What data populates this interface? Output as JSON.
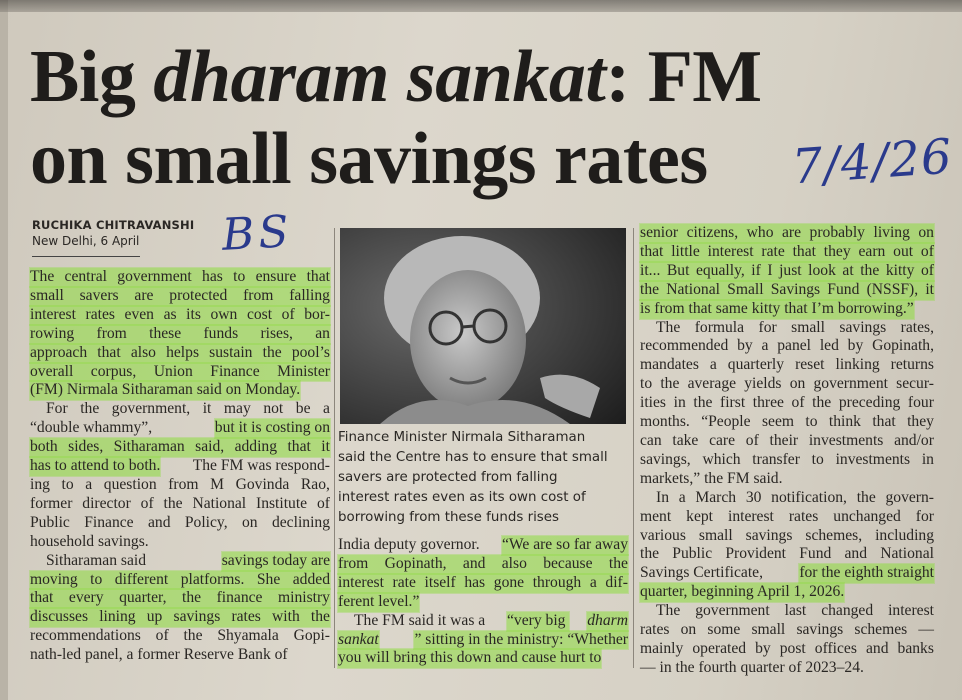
{
  "headline": {
    "line1_pre": "Big ",
    "line1_italic": "dharam sankat",
    "line1_post": ": FM",
    "line2": "on small savings rates"
  },
  "byline": {
    "author": "RUCHIKA CHITRAVANSHI",
    "dateline": "New Delhi, 6 April"
  },
  "annotations": {
    "initials": "BS",
    "date": "7/4/26"
  },
  "photo": {
    "caption": [
      "Finance Minister Nirmala Sitharaman",
      "said the Centre has to ensure that small",
      "savers are protected from falling",
      "interest rates even as its own cost of",
      "borrowing from these funds rises"
    ]
  },
  "colors": {
    "highlight": "#8cdc3c",
    "ink": "#2a3a8c",
    "paper": "#d8d3c8"
  },
  "body": {
    "col1": {
      "paragraphs": [
        {
          "lines": [
            [
              {
                "text": "The central government has to ensure that",
                "highlight": true
              }
            ],
            [
              {
                "text": "small savers are protected from falling",
                "highlight": true
              }
            ],
            [
              {
                "text": "interest rates even as its own cost of bor-",
                "highlight": true
              }
            ],
            [
              {
                "text": "rowing from these funds rises, an",
                "highlight": true
              }
            ],
            [
              {
                "text": "approach that also helps sustain the pool’s",
                "highlight": true
              }
            ],
            [
              {
                "text": "overall corpus, Union Finance Minister",
                "highlight": true
              }
            ],
            [
              {
                "text": "(FM) Nirmala Sitharaman said on Monday.",
                "highlight": true
              }
            ]
          ]
        },
        {
          "lines": [
            [
              {
                "text": "For the government, it may not be a"
              }
            ],
            [
              {
                "text": "“double whammy”, "
              },
              {
                "text": "but it is costing on",
                "highlight": true
              }
            ],
            [
              {
                "text": "both sides, Sitharaman said, adding that it",
                "highlight": true
              }
            ],
            [
              {
                "text": "has to attend to both.",
                "highlight": true
              },
              {
                "text": " The FM was respond-"
              }
            ],
            [
              {
                "text": "ing to a question from M Govinda Rao,"
              }
            ],
            [
              {
                "text": "former director of the National Institute of"
              }
            ],
            [
              {
                "text": "Public Finance and Policy, on declining"
              }
            ],
            [
              {
                "text": "household savings."
              }
            ]
          ]
        },
        {
          "lines": [
            [
              {
                "text": "Sitharaman said "
              },
              {
                "text": "savings today are",
                "highlight": true
              }
            ],
            [
              {
                "text": "moving to different platforms. She added",
                "highlight": true
              }
            ],
            [
              {
                "text": "that every quarter, the finance ministry",
                "highlight": true
              }
            ],
            [
              {
                "text": "discusses lining up savings rates with the",
                "highlight": true
              }
            ],
            [
              {
                "text": "recommendations of the Shyamala Gopi-"
              }
            ],
            [
              {
                "text": "nath-led panel, a former Reserve Bank of"
              }
            ]
          ]
        }
      ]
    },
    "col2": {
      "paragraphs": [
        {
          "lines": [
            [
              {
                "text": "India deputy governor. "
              },
              {
                "text": "“We are so far away",
                "highlight": true
              }
            ],
            [
              {
                "text": "from Gopinath, and also because the",
                "highlight": true
              }
            ],
            [
              {
                "text": "interest rate itself has gone through a dif-",
                "highlight": true
              }
            ],
            [
              {
                "text": "ferent level.”",
                "highlight": true
              }
            ]
          ]
        },
        {
          "lines": [
            [
              {
                "text": "The FM said it was a "
              },
              {
                "text": "“very big ",
                "highlight": true
              },
              {
                "text": "dharm",
                "highlight": true,
                "italic": true
              }
            ],
            [
              {
                "text": "sankat",
                "highlight": true,
                "italic": true
              },
              {
                "text": "” sitting in the ministry: “Whether",
                "highlight": true
              }
            ],
            [
              {
                "text": "you will bring this down and cause hurt to",
                "highlight": true
              }
            ]
          ]
        }
      ]
    },
    "col3": {
      "paragraphs": [
        {
          "lines": [
            [
              {
                "text": "senior citizens, who are probably living on",
                "highlight": true
              }
            ],
            [
              {
                "text": "that little interest rate that they earn out of",
                "highlight": true
              }
            ],
            [
              {
                "text": "it... But equally, if I just look at the kitty of",
                "highlight": true
              }
            ],
            [
              {
                "text": "the National Small Savings Fund (NSSF), it",
                "highlight": true
              }
            ],
            [
              {
                "text": "is from that same kitty that I’m borrowing.”",
                "highlight": true
              }
            ]
          ]
        },
        {
          "lines": [
            [
              {
                "text": "The formula for small savings rates,"
              }
            ],
            [
              {
                "text": "recommended by a panel led by Gopinath,"
              }
            ],
            [
              {
                "text": "mandates a quarterly reset linking returns"
              }
            ],
            [
              {
                "text": "to the average yields on government secur-"
              }
            ],
            [
              {
                "text": "ities in the first three of the preceding four"
              }
            ],
            [
              {
                "text": "months. “People seem to think that they"
              }
            ],
            [
              {
                "text": "can take care of their investments and/or"
              }
            ],
            [
              {
                "text": "savings, which transfer to investments in"
              }
            ],
            [
              {
                "text": "markets,” the FM said."
              }
            ]
          ]
        },
        {
          "lines": [
            [
              {
                "text": "In a March 30 notification, the govern-"
              }
            ],
            [
              {
                "text": "ment kept interest rates unchanged for"
              }
            ],
            [
              {
                "text": "various small savings schemes, including"
              }
            ],
            [
              {
                "text": "the Public Provident Fund and National"
              }
            ],
            [
              {
                "text": "Savings Certificate, "
              },
              {
                "text": "for the eighth straight",
                "highlight": true
              }
            ],
            [
              {
                "text": "quarter, beginning April 1, 2026.",
                "highlight": true
              }
            ]
          ]
        },
        {
          "lines": [
            [
              {
                "text": "The government last changed interest"
              }
            ],
            [
              {
                "text": "rates on some small savings schemes —"
              }
            ],
            [
              {
                "text": "mainly operated by post offices and banks"
              }
            ],
            [
              {
                "text": "— in the fourth quarter of 2023–24."
              }
            ]
          ]
        }
      ]
    }
  }
}
